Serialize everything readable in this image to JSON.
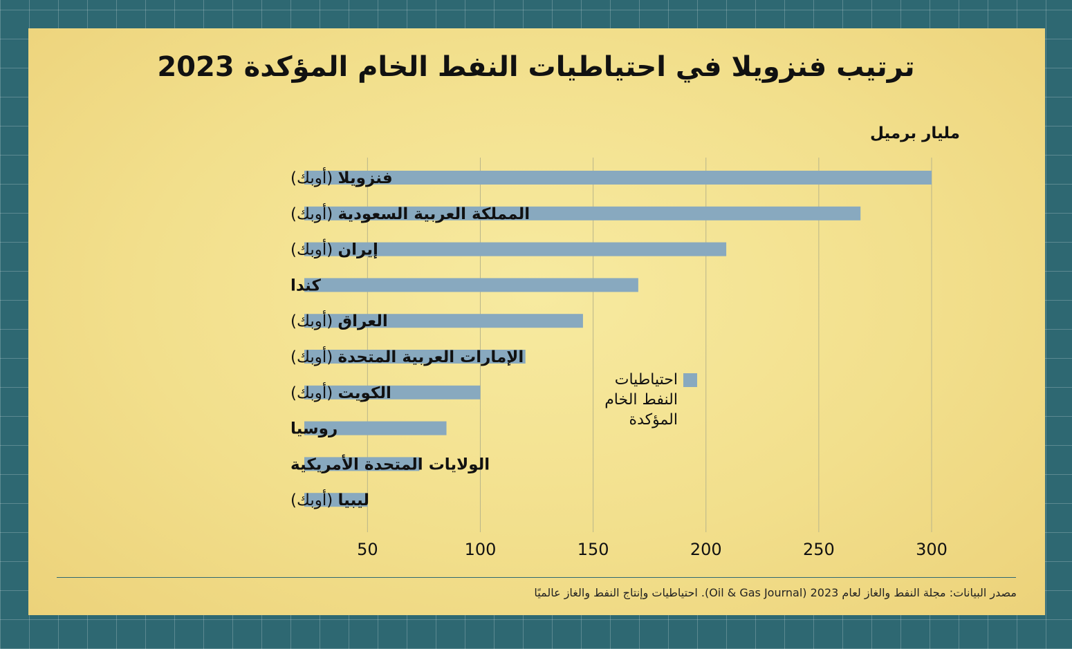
{
  "title": "ترتيب فنزويلا في احتياطيات النفط الخام المؤكدة 2023",
  "unit_label": "مليار برميل",
  "legend": {
    "label": "احتياطيات النفط الخام المؤكدة",
    "color": "#88a9bf"
  },
  "source": "مصدر البيانات: مجلة النفط والغاز لعام 2023 (Oil & Gas Journal). احتياطيات وإنتاج النفط والغاز عالميًا",
  "colors": {
    "background": "#2e6872",
    "panel": "#f4e394",
    "bar": "#88a9bf",
    "grid": "#b9b58a"
  },
  "chart_data": {
    "type": "bar",
    "orientation": "horizontal",
    "title": "ترتيب فنزويلا في احتياطيات النفط الخام المؤكدة 2023",
    "xlabel": "مليار برميل",
    "ylabel": "",
    "xlim": [
      22,
      300
    ],
    "ticks": [
      50,
      100,
      150,
      200,
      250,
      300
    ],
    "grid": true,
    "legend_position": "center",
    "series": [
      {
        "name": "احتياطيات النفط الخام المؤكدة",
        "color": "#88a9bf"
      }
    ],
    "categories": [
      {
        "name": "فنزويلا",
        "tag": "(أوبك)"
      },
      {
        "name": "المملكة العربية السعودية",
        "tag": "(أوبك)"
      },
      {
        "name": "إيران",
        "tag": "(أوبك)"
      },
      {
        "name": "كندا",
        "tag": ""
      },
      {
        "name": "العراق",
        "tag": "(أوبك)"
      },
      {
        "name": "الإمارات العربية المتحدة",
        "tag": "(أوبك)"
      },
      {
        "name": "الكويت",
        "tag": "(أوبك)"
      },
      {
        "name": "روسيا",
        "tag": ""
      },
      {
        "name": "الولايات المتحدة الأمريكية",
        "tag": ""
      },
      {
        "name": "ليبيا",
        "tag": "(أوبك)"
      }
    ],
    "values": [
      300,
      268.5,
      209,
      170,
      145.5,
      120,
      100,
      85,
      73,
      50
    ]
  }
}
